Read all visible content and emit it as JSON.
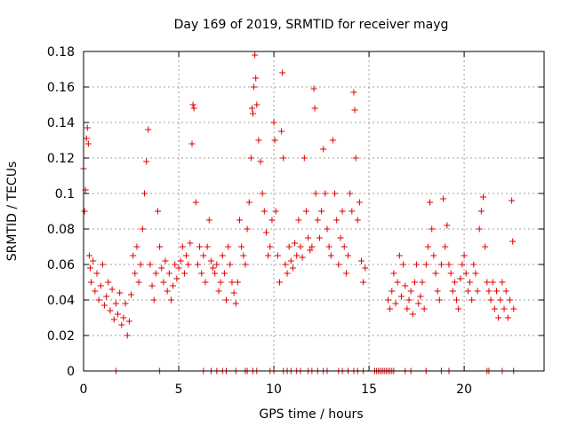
{
  "chart_data": {
    "type": "scatter",
    "title": "Day 169 of 2019, SRMTID for receiver mayg",
    "xlabel": "GPS time / hours",
    "ylabel": "SRMTID / TECUs",
    "xlim": [
      0,
      24.2
    ],
    "ylim": [
      0,
      0.18
    ],
    "x_ticks": [
      0,
      5,
      10,
      15,
      20
    ],
    "x_tick_labels": [
      "0",
      "5",
      "10",
      "15",
      "20"
    ],
    "y_ticks": [
      0,
      0.02,
      0.04,
      0.06,
      0.08,
      0.1,
      0.12,
      0.14,
      0.16,
      0.18
    ],
    "y_tick_labels": [
      "0",
      "0.02",
      "0.04",
      "0.06",
      "0.08",
      "0.1",
      "0.12",
      "0.14",
      "0.16",
      "0.18"
    ],
    "grid": true,
    "marker": "plus",
    "color": "#e00000",
    "series": [
      {
        "name": "SRMTID",
        "points": [
          [
            0.0,
            0.114
          ],
          [
            0.05,
            0.09
          ],
          [
            0.1,
            0.102
          ],
          [
            0.15,
            0.131
          ],
          [
            0.2,
            0.137
          ],
          [
            0.25,
            0.128
          ],
          [
            0.3,
            0.065
          ],
          [
            0.35,
            0.058
          ],
          [
            0.4,
            0.05
          ],
          [
            0.5,
            0.062
          ],
          [
            0.6,
            0.045
          ],
          [
            0.7,
            0.055
          ],
          [
            0.8,
            0.04
          ],
          [
            0.9,
            0.048
          ],
          [
            1.0,
            0.06
          ],
          [
            1.1,
            0.037
          ],
          [
            1.2,
            0.042
          ],
          [
            1.3,
            0.05
          ],
          [
            1.4,
            0.034
          ],
          [
            1.5,
            0.046
          ],
          [
            1.6,
            0.029
          ],
          [
            1.7,
            0.038
          ],
          [
            1.8,
            0.032
          ],
          [
            1.9,
            0.044
          ],
          [
            2.0,
            0.026
          ],
          [
            2.1,
            0.03
          ],
          [
            2.2,
            0.038
          ],
          [
            2.3,
            0.02
          ],
          [
            2.4,
            0.028
          ],
          [
            2.5,
            0.043
          ],
          [
            2.6,
            0.065
          ],
          [
            2.7,
            0.055
          ],
          [
            2.8,
            0.07
          ],
          [
            2.9,
            0.05
          ],
          [
            3.0,
            0.06
          ],
          [
            3.1,
            0.08
          ],
          [
            3.2,
            0.1
          ],
          [
            3.3,
            0.118
          ],
          [
            3.4,
            0.136
          ],
          [
            3.5,
            0.06
          ],
          [
            3.6,
            0.048
          ],
          [
            3.7,
            0.04
          ],
          [
            3.8,
            0.055
          ],
          [
            3.9,
            0.09
          ],
          [
            4.0,
            0.07
          ],
          [
            4.1,
            0.058
          ],
          [
            4.2,
            0.05
          ],
          [
            4.3,
            0.062
          ],
          [
            4.4,
            0.045
          ],
          [
            4.5,
            0.055
          ],
          [
            4.6,
            0.04
          ],
          [
            4.7,
            0.048
          ],
          [
            4.8,
            0.06
          ],
          [
            4.9,
            0.052
          ],
          [
            5.0,
            0.058
          ],
          [
            5.1,
            0.062
          ],
          [
            5.2,
            0.07
          ],
          [
            5.3,
            0.055
          ],
          [
            5.4,
            0.065
          ],
          [
            5.5,
            0.06
          ],
          [
            5.6,
            0.072
          ],
          [
            5.7,
            0.128
          ],
          [
            5.75,
            0.15
          ],
          [
            5.8,
            0.148
          ],
          [
            5.9,
            0.095
          ],
          [
            6.0,
            0.06
          ],
          [
            6.1,
            0.07
          ],
          [
            6.2,
            0.055
          ],
          [
            6.3,
            0.065
          ],
          [
            6.4,
            0.05
          ],
          [
            6.5,
            0.07
          ],
          [
            6.6,
            0.085
          ],
          [
            6.7,
            0.062
          ],
          [
            6.8,
            0.058
          ],
          [
            6.9,
            0.055
          ],
          [
            7.0,
            0.06
          ],
          [
            7.1,
            0.045
          ],
          [
            7.2,
            0.05
          ],
          [
            7.3,
            0.065
          ],
          [
            7.4,
            0.055
          ],
          [
            7.5,
            0.04
          ],
          [
            7.6,
            0.07
          ],
          [
            7.7,
            0.06
          ],
          [
            7.8,
            0.05
          ],
          [
            7.9,
            0.044
          ],
          [
            8.0,
            0.038
          ],
          [
            8.1,
            0.05
          ],
          [
            8.2,
            0.085
          ],
          [
            8.3,
            0.07
          ],
          [
            8.4,
            0.065
          ],
          [
            8.5,
            0.06
          ],
          [
            8.6,
            0.08
          ],
          [
            8.7,
            0.095
          ],
          [
            8.8,
            0.12
          ],
          [
            8.85,
            0.148
          ],
          [
            8.9,
            0.145
          ],
          [
            8.95,
            0.16
          ],
          [
            9.0,
            0.178
          ],
          [
            9.05,
            0.165
          ],
          [
            9.1,
            0.15
          ],
          [
            9.2,
            0.13
          ],
          [
            9.3,
            0.118
          ],
          [
            9.4,
            0.1
          ],
          [
            9.5,
            0.09
          ],
          [
            9.6,
            0.078
          ],
          [
            9.7,
            0.065
          ],
          [
            9.8,
            0.07
          ],
          [
            9.9,
            0.085
          ],
          [
            10.0,
            0.14
          ],
          [
            10.05,
            0.13
          ],
          [
            10.1,
            0.09
          ],
          [
            10.2,
            0.065
          ],
          [
            10.3,
            0.05
          ],
          [
            10.4,
            0.135
          ],
          [
            10.45,
            0.168
          ],
          [
            10.5,
            0.12
          ],
          [
            10.6,
            0.06
          ],
          [
            10.7,
            0.055
          ],
          [
            10.8,
            0.07
          ],
          [
            10.9,
            0.062
          ],
          [
            11.0,
            0.058
          ],
          [
            11.1,
            0.072
          ],
          [
            11.2,
            0.065
          ],
          [
            11.3,
            0.085
          ],
          [
            11.4,
            0.07
          ],
          [
            11.5,
            0.064
          ],
          [
            11.6,
            0.12
          ],
          [
            11.7,
            0.09
          ],
          [
            11.8,
            0.075
          ],
          [
            11.9,
            0.068
          ],
          [
            12.0,
            0.07
          ],
          [
            12.1,
            0.159
          ],
          [
            12.15,
            0.148
          ],
          [
            12.2,
            0.1
          ],
          [
            12.3,
            0.085
          ],
          [
            12.4,
            0.075
          ],
          [
            12.5,
            0.09
          ],
          [
            12.6,
            0.125
          ],
          [
            12.7,
            0.1
          ],
          [
            12.8,
            0.08
          ],
          [
            12.9,
            0.07
          ],
          [
            13.0,
            0.065
          ],
          [
            13.1,
            0.13
          ],
          [
            13.2,
            0.1
          ],
          [
            13.3,
            0.085
          ],
          [
            13.4,
            0.06
          ],
          [
            13.5,
            0.075
          ],
          [
            13.6,
            0.09
          ],
          [
            13.7,
            0.07
          ],
          [
            13.8,
            0.055
          ],
          [
            13.9,
            0.065
          ],
          [
            14.0,
            0.1
          ],
          [
            14.1,
            0.09
          ],
          [
            14.2,
            0.157
          ],
          [
            14.25,
            0.147
          ],
          [
            14.3,
            0.12
          ],
          [
            14.4,
            0.085
          ],
          [
            14.5,
            0.095
          ],
          [
            14.6,
            0.062
          ],
          [
            14.7,
            0.05
          ],
          [
            14.8,
            0.058
          ],
          [
            16.0,
            0.04
          ],
          [
            16.1,
            0.035
          ],
          [
            16.2,
            0.045
          ],
          [
            16.3,
            0.055
          ],
          [
            16.4,
            0.038
          ],
          [
            16.5,
            0.05
          ],
          [
            16.6,
            0.065
          ],
          [
            16.7,
            0.042
          ],
          [
            16.8,
            0.06
          ],
          [
            16.9,
            0.048
          ],
          [
            17.0,
            0.035
          ],
          [
            17.1,
            0.04
          ],
          [
            17.2,
            0.045
          ],
          [
            17.3,
            0.032
          ],
          [
            17.4,
            0.05
          ],
          [
            17.5,
            0.06
          ],
          [
            17.6,
            0.038
          ],
          [
            17.7,
            0.042
          ],
          [
            17.8,
            0.05
          ],
          [
            17.9,
            0.035
          ],
          [
            18.0,
            0.06
          ],
          [
            18.1,
            0.07
          ],
          [
            18.2,
            0.095
          ],
          [
            18.3,
            0.08
          ],
          [
            18.4,
            0.065
          ],
          [
            18.5,
            0.055
          ],
          [
            18.6,
            0.045
          ],
          [
            18.7,
            0.04
          ],
          [
            18.8,
            0.06
          ],
          [
            18.9,
            0.097
          ],
          [
            19.0,
            0.07
          ],
          [
            19.1,
            0.082
          ],
          [
            19.2,
            0.06
          ],
          [
            19.3,
            0.055
          ],
          [
            19.4,
            0.045
          ],
          [
            19.5,
            0.05
          ],
          [
            19.6,
            0.04
          ],
          [
            19.7,
            0.035
          ],
          [
            19.8,
            0.052
          ],
          [
            19.9,
            0.06
          ],
          [
            20.0,
            0.065
          ],
          [
            20.1,
            0.055
          ],
          [
            20.2,
            0.045
          ],
          [
            20.3,
            0.05
          ],
          [
            20.4,
            0.04
          ],
          [
            20.5,
            0.06
          ],
          [
            20.6,
            0.055
          ],
          [
            20.7,
            0.045
          ],
          [
            20.8,
            0.08
          ],
          [
            20.9,
            0.09
          ],
          [
            21.0,
            0.098
          ],
          [
            21.1,
            0.07
          ],
          [
            21.2,
            0.05
          ],
          [
            21.3,
            0.045
          ],
          [
            21.4,
            0.04
          ],
          [
            21.5,
            0.05
          ],
          [
            21.6,
            0.035
          ],
          [
            21.7,
            0.045
          ],
          [
            21.8,
            0.03
          ],
          [
            21.9,
            0.04
          ],
          [
            22.0,
            0.05
          ],
          [
            22.1,
            0.035
          ],
          [
            22.2,
            0.045
          ],
          [
            22.3,
            0.03
          ],
          [
            22.4,
            0.04
          ],
          [
            22.5,
            0.096
          ],
          [
            22.55,
            0.073
          ],
          [
            22.6,
            0.035
          ]
        ],
        "zero_points_x": [
          1.7,
          4.0,
          6.3,
          6.7,
          7.0,
          7.3,
          7.5,
          8.0,
          8.5,
          8.6,
          8.9,
          9.1,
          9.8,
          10.0,
          10.5,
          10.7,
          10.9,
          11.2,
          11.4,
          11.8,
          12.0,
          12.3,
          12.6,
          12.8,
          13.4,
          13.6,
          13.9,
          14.2,
          14.4,
          14.7,
          15.3,
          15.4,
          15.5,
          15.6,
          15.7,
          15.8,
          15.9,
          16.0,
          16.1,
          16.2,
          16.3,
          16.9,
          17.2,
          18.0,
          18.8,
          19.2,
          21.2,
          21.3,
          22.0,
          22.6
        ]
      }
    ]
  }
}
